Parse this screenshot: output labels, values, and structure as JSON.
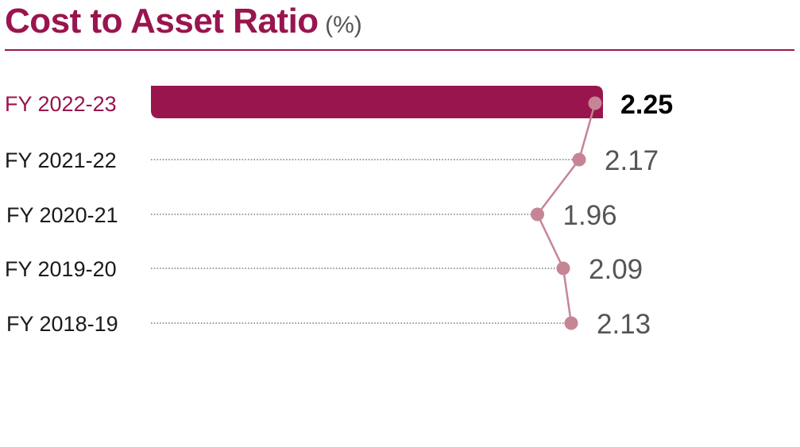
{
  "title": "Cost to Asset Ratio",
  "unit": "(%)",
  "colors": {
    "accent": "#99154E",
    "line": "#C58595",
    "value_text": "#555555",
    "label_text": "#1a1a1a",
    "leader": "#777777"
  },
  "chart_data": {
    "type": "bar",
    "title": "Cost to Asset Ratio",
    "unit": "%",
    "categories": [
      "FY 2022-23",
      "FY 2021-22",
      "FY 2020-21",
      "FY 2019-20",
      "FY 2018-19"
    ],
    "values": [
      2.25,
      2.17,
      1.96,
      2.09,
      2.13
    ],
    "highlight": "FY 2022-23",
    "xlabel": "",
    "ylabel": "",
    "grid": false
  }
}
